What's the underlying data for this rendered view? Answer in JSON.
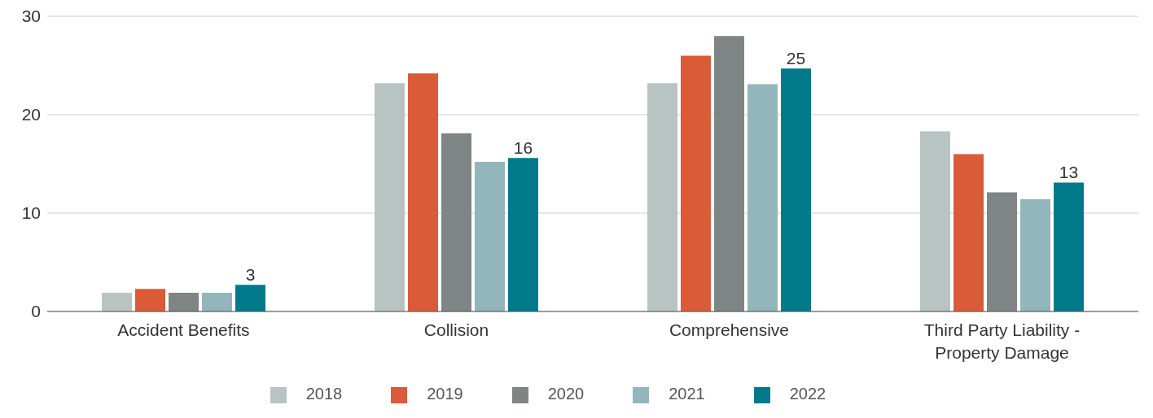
{
  "chart_data": {
    "type": "bar",
    "categories": [
      "Accident Benefits",
      "Collision",
      "Comprehensive",
      "Third Party Liability - Property Damage"
    ],
    "series": [
      {
        "name": "2018",
        "color": "#b8c4c2",
        "values": [
          1.9,
          23.2,
          23.2,
          18.3
        ]
      },
      {
        "name": "2019",
        "color": "#d95b38",
        "values": [
          2.3,
          24.2,
          26.0,
          16.0
        ]
      },
      {
        "name": "2020",
        "color": "#7f8585",
        "values": [
          1.9,
          18.1,
          28.0,
          12.1
        ]
      },
      {
        "name": "2021",
        "color": "#93b6bd",
        "values": [
          1.9,
          15.2,
          23.1,
          11.4
        ]
      },
      {
        "name": "2022",
        "color": "#007a8a",
        "values": [
          2.7,
          15.6,
          24.7,
          13.1
        ],
        "value_labels": [
          "3",
          "16",
          "25",
          "13"
        ]
      }
    ],
    "ylim": [
      0,
      30
    ],
    "yticks": [
      0,
      10,
      20,
      30
    ],
    "grid": "y",
    "legend": "bottom"
  }
}
